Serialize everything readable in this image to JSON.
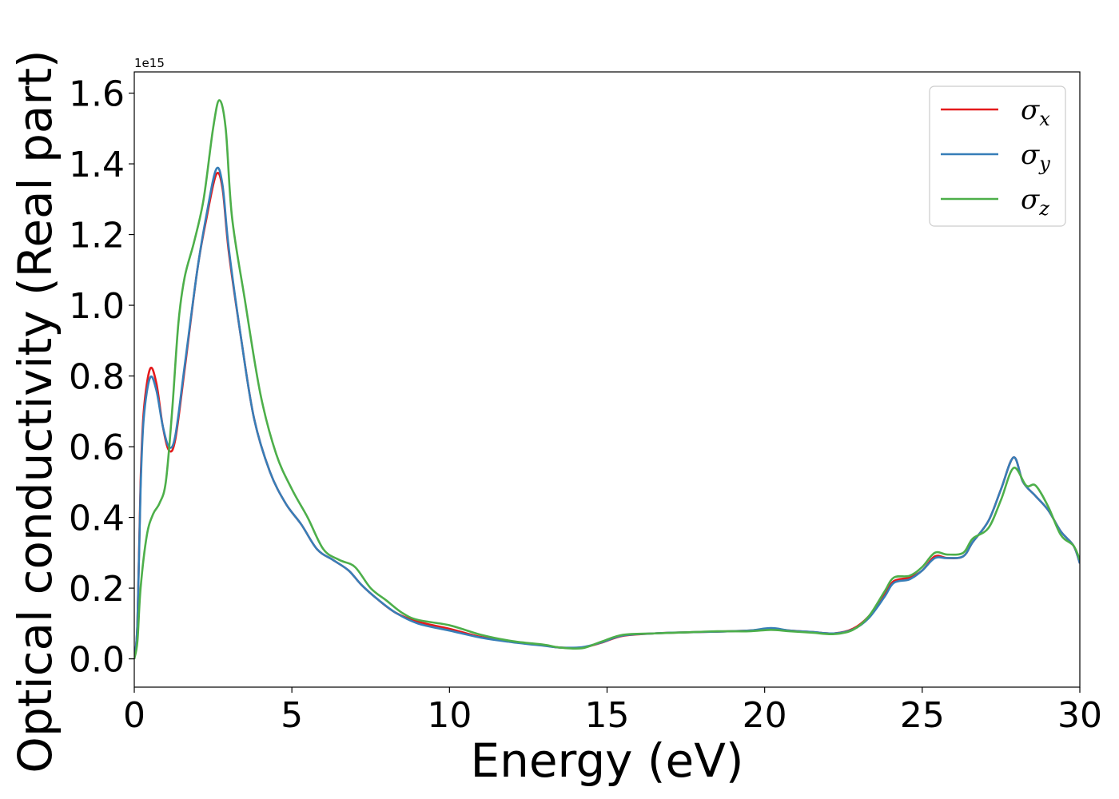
{
  "chart_data": {
    "type": "line",
    "xlabel": "Energy (eV)",
    "ylabel": "Optical conductivity (Real part)",
    "y_offset_label": "1e15",
    "y_scale": 1000000000000000.0,
    "xlim": [
      0,
      30
    ],
    "ylim": [
      -0.08,
      1.66
    ],
    "xticks": [
      0,
      5,
      10,
      15,
      20,
      25,
      30
    ],
    "xtick_labels": [
      "0",
      "5",
      "10",
      "15",
      "20",
      "25",
      "30"
    ],
    "yticks": [
      0.0,
      0.2,
      0.4,
      0.6,
      0.8,
      1.0,
      1.2,
      1.4,
      1.6
    ],
    "ytick_labels": [
      "0.0",
      "0.2",
      "0.4",
      "0.6",
      "0.8",
      "1.0",
      "1.2",
      "1.4",
      "1.6"
    ],
    "grid": false,
    "legend_position": "top-right",
    "series": [
      {
        "name": "σ",
        "subscript": "x",
        "color": "#e41a1c",
        "points": [
          [
            0,
            0.0
          ],
          [
            0.1,
            0.1
          ],
          [
            0.2,
            0.5
          ],
          [
            0.3,
            0.7
          ],
          [
            0.5,
            0.82
          ],
          [
            0.7,
            0.78
          ],
          [
            0.9,
            0.66
          ],
          [
            1.1,
            0.59
          ],
          [
            1.3,
            0.62
          ],
          [
            1.6,
            0.82
          ],
          [
            2.0,
            1.1
          ],
          [
            2.3,
            1.25
          ],
          [
            2.6,
            1.37
          ],
          [
            2.8,
            1.33
          ],
          [
            3.0,
            1.15
          ],
          [
            3.4,
            0.9
          ],
          [
            3.8,
            0.68
          ],
          [
            4.3,
            0.53
          ],
          [
            4.8,
            0.44
          ],
          [
            5.3,
            0.38
          ],
          [
            5.8,
            0.31
          ],
          [
            6.3,
            0.28
          ],
          [
            6.8,
            0.25
          ],
          [
            7.2,
            0.21
          ],
          [
            7.7,
            0.17
          ],
          [
            8.3,
            0.13
          ],
          [
            9.0,
            0.105
          ],
          [
            10.0,
            0.085
          ],
          [
            11.0,
            0.062
          ],
          [
            12.0,
            0.048
          ],
          [
            13.0,
            0.038
          ],
          [
            13.5,
            0.032
          ],
          [
            14.2,
            0.032
          ],
          [
            14.8,
            0.045
          ],
          [
            15.5,
            0.065
          ],
          [
            16.5,
            0.072
          ],
          [
            17.5,
            0.075
          ],
          [
            18.5,
            0.077
          ],
          [
            19.5,
            0.08
          ],
          [
            20.2,
            0.085
          ],
          [
            20.8,
            0.08
          ],
          [
            21.5,
            0.076
          ],
          [
            22.2,
            0.072
          ],
          [
            22.8,
            0.085
          ],
          [
            23.3,
            0.12
          ],
          [
            23.8,
            0.18
          ],
          [
            24.1,
            0.22
          ],
          [
            24.6,
            0.23
          ],
          [
            25.0,
            0.25
          ],
          [
            25.4,
            0.29
          ],
          [
            25.8,
            0.285
          ],
          [
            26.3,
            0.29
          ],
          [
            26.6,
            0.33
          ],
          [
            27.1,
            0.39
          ],
          [
            27.5,
            0.48
          ],
          [
            27.9,
            0.57
          ],
          [
            28.2,
            0.5
          ],
          [
            28.6,
            0.46
          ],
          [
            29.0,
            0.42
          ],
          [
            29.4,
            0.36
          ],
          [
            29.8,
            0.32
          ],
          [
            30.0,
            0.27
          ]
        ]
      },
      {
        "name": "σ",
        "subscript": "y",
        "color": "#377eb8",
        "points": [
          [
            0,
            0.0
          ],
          [
            0.1,
            0.1
          ],
          [
            0.2,
            0.48
          ],
          [
            0.3,
            0.68
          ],
          [
            0.5,
            0.795
          ],
          [
            0.7,
            0.76
          ],
          [
            0.9,
            0.66
          ],
          [
            1.1,
            0.6
          ],
          [
            1.3,
            0.63
          ],
          [
            1.6,
            0.83
          ],
          [
            2.0,
            1.1
          ],
          [
            2.3,
            1.26
          ],
          [
            2.6,
            1.385
          ],
          [
            2.8,
            1.34
          ],
          [
            3.0,
            1.16
          ],
          [
            3.4,
            0.9
          ],
          [
            3.8,
            0.68
          ],
          [
            4.3,
            0.53
          ],
          [
            4.8,
            0.44
          ],
          [
            5.3,
            0.38
          ],
          [
            5.8,
            0.31
          ],
          [
            6.3,
            0.28
          ],
          [
            6.8,
            0.25
          ],
          [
            7.2,
            0.21
          ],
          [
            7.7,
            0.17
          ],
          [
            8.3,
            0.13
          ],
          [
            9.0,
            0.1
          ],
          [
            10.0,
            0.08
          ],
          [
            11.0,
            0.06
          ],
          [
            12.0,
            0.047
          ],
          [
            13.0,
            0.037
          ],
          [
            13.5,
            0.032
          ],
          [
            14.2,
            0.033
          ],
          [
            14.8,
            0.046
          ],
          [
            15.5,
            0.066
          ],
          [
            16.5,
            0.072
          ],
          [
            17.5,
            0.075
          ],
          [
            18.5,
            0.077
          ],
          [
            19.5,
            0.08
          ],
          [
            20.2,
            0.087
          ],
          [
            20.8,
            0.08
          ],
          [
            21.5,
            0.076
          ],
          [
            22.2,
            0.072
          ],
          [
            22.8,
            0.083
          ],
          [
            23.3,
            0.115
          ],
          [
            23.8,
            0.175
          ],
          [
            24.1,
            0.215
          ],
          [
            24.6,
            0.225
          ],
          [
            25.0,
            0.25
          ],
          [
            25.4,
            0.285
          ],
          [
            25.8,
            0.285
          ],
          [
            26.3,
            0.29
          ],
          [
            26.6,
            0.33
          ],
          [
            27.1,
            0.39
          ],
          [
            27.5,
            0.48
          ],
          [
            27.9,
            0.57
          ],
          [
            28.2,
            0.5
          ],
          [
            28.6,
            0.46
          ],
          [
            29.0,
            0.42
          ],
          [
            29.4,
            0.36
          ],
          [
            29.8,
            0.32
          ],
          [
            30.0,
            0.27
          ]
        ]
      },
      {
        "name": "σ",
        "subscript": "z",
        "color": "#4daf4a",
        "points": [
          [
            0,
            0.0
          ],
          [
            0.1,
            0.05
          ],
          [
            0.2,
            0.2
          ],
          [
            0.4,
            0.35
          ],
          [
            0.6,
            0.41
          ],
          [
            0.8,
            0.44
          ],
          [
            1.0,
            0.5
          ],
          [
            1.2,
            0.7
          ],
          [
            1.4,
            0.95
          ],
          [
            1.6,
            1.08
          ],
          [
            1.9,
            1.18
          ],
          [
            2.2,
            1.3
          ],
          [
            2.5,
            1.5
          ],
          [
            2.7,
            1.58
          ],
          [
            2.9,
            1.5
          ],
          [
            3.1,
            1.25
          ],
          [
            3.5,
            1.02
          ],
          [
            4.0,
            0.75
          ],
          [
            4.5,
            0.58
          ],
          [
            5.0,
            0.48
          ],
          [
            5.5,
            0.4
          ],
          [
            6.0,
            0.31
          ],
          [
            6.5,
            0.28
          ],
          [
            7.0,
            0.26
          ],
          [
            7.5,
            0.2
          ],
          [
            8.0,
            0.165
          ],
          [
            8.5,
            0.13
          ],
          [
            9.0,
            0.11
          ],
          [
            10.0,
            0.095
          ],
          [
            11.0,
            0.068
          ],
          [
            12.0,
            0.05
          ],
          [
            13.0,
            0.04
          ],
          [
            13.5,
            0.032
          ],
          [
            14.2,
            0.03
          ],
          [
            14.8,
            0.048
          ],
          [
            15.5,
            0.068
          ],
          [
            16.5,
            0.072
          ],
          [
            17.5,
            0.075
          ],
          [
            18.5,
            0.078
          ],
          [
            19.5,
            0.078
          ],
          [
            20.2,
            0.082
          ],
          [
            20.8,
            0.078
          ],
          [
            21.5,
            0.074
          ],
          [
            22.2,
            0.07
          ],
          [
            22.8,
            0.082
          ],
          [
            23.3,
            0.12
          ],
          [
            23.8,
            0.19
          ],
          [
            24.1,
            0.23
          ],
          [
            24.6,
            0.235
          ],
          [
            25.0,
            0.26
          ],
          [
            25.4,
            0.3
          ],
          [
            25.8,
            0.295
          ],
          [
            26.3,
            0.3
          ],
          [
            26.6,
            0.34
          ],
          [
            27.1,
            0.37
          ],
          [
            27.5,
            0.45
          ],
          [
            27.9,
            0.54
          ],
          [
            28.3,
            0.49
          ],
          [
            28.6,
            0.49
          ],
          [
            29.0,
            0.43
          ],
          [
            29.4,
            0.35
          ],
          [
            29.8,
            0.32
          ],
          [
            30.0,
            0.28
          ]
        ]
      }
    ]
  }
}
